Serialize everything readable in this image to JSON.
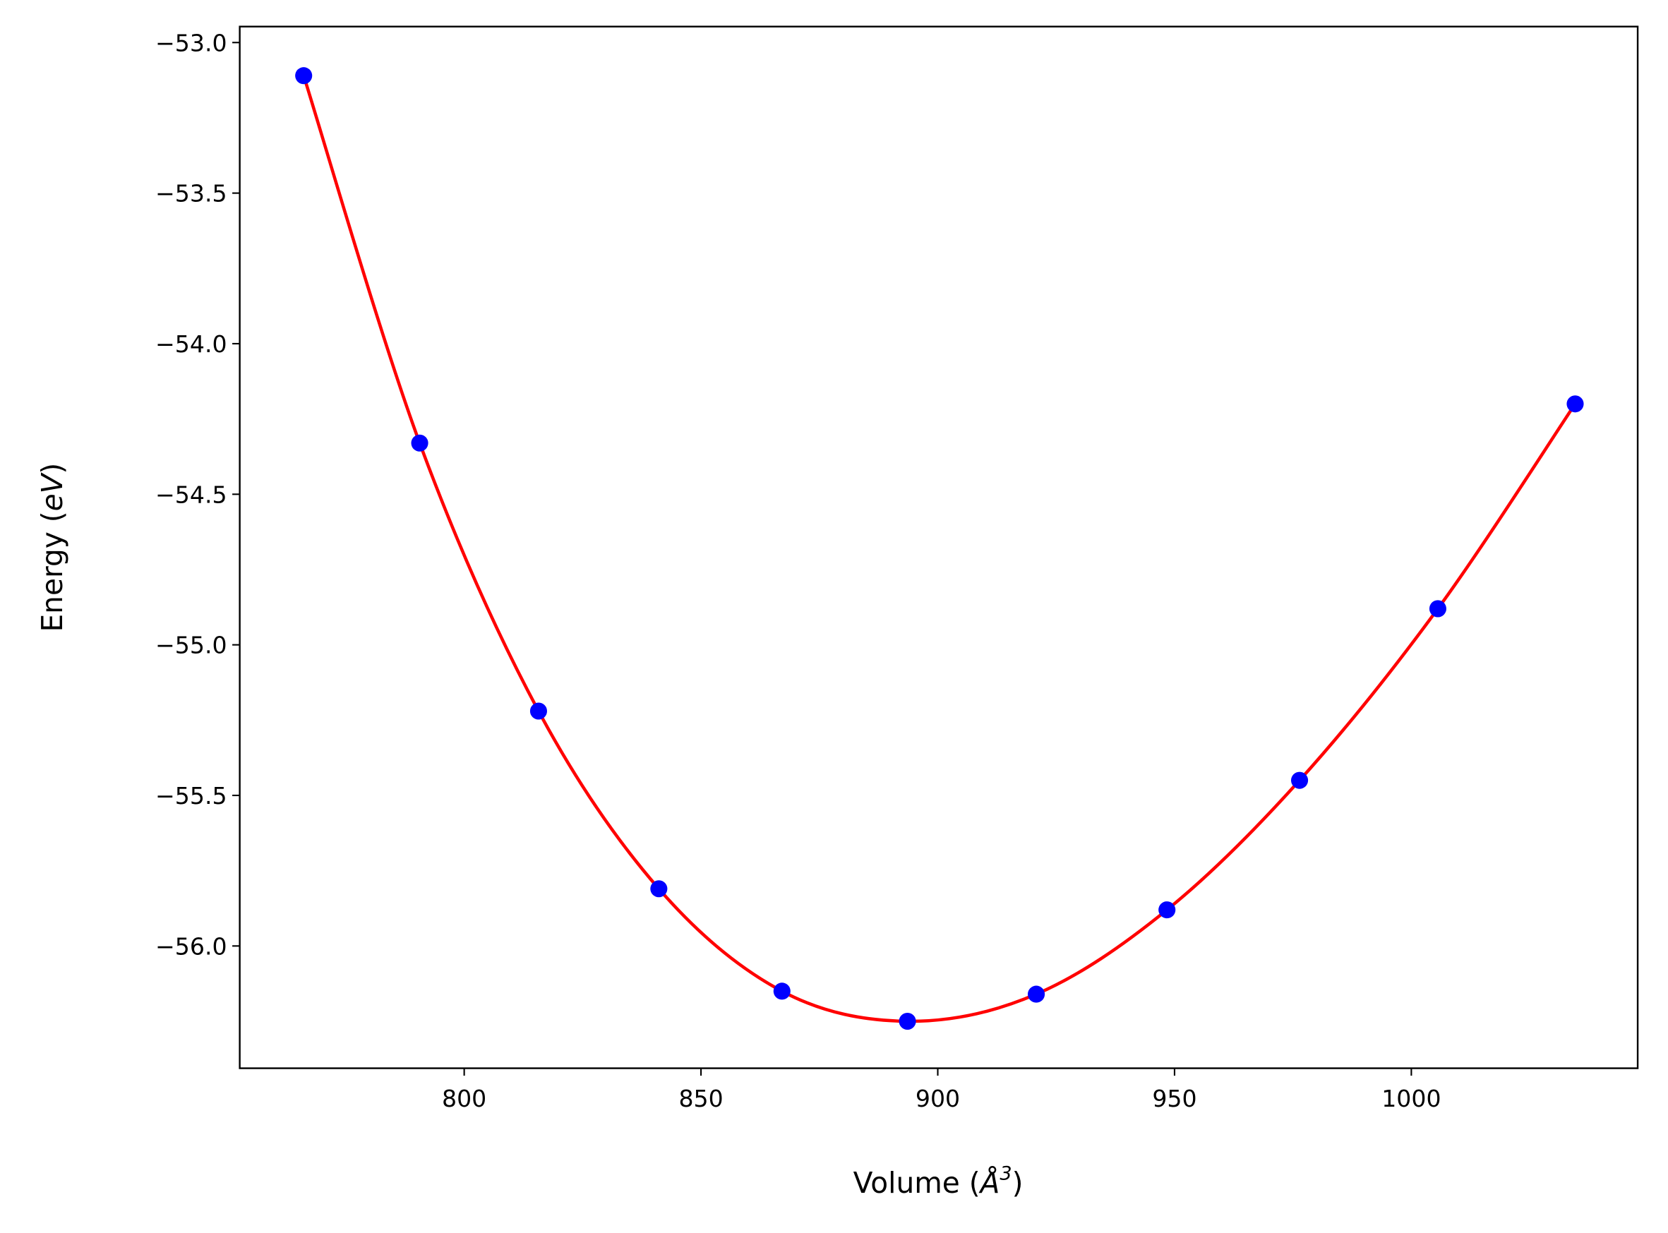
{
  "chart_data": {
    "type": "line",
    "title": "",
    "xlabel": "Volume (Å³)",
    "xlabel_parts": {
      "prefix": "Volume (",
      "unit": "Å",
      "sup": "3",
      "suffix": ")"
    },
    "ylabel": "Energy (eV)",
    "ylabel_parts": {
      "prefix": "Energy (",
      "unit": "eV",
      "suffix": ")"
    },
    "xlim": [
      752.6,
      1047.8
    ],
    "ylim": [
      -56.406,
      -52.947
    ],
    "xticks": [
      800,
      850,
      900,
      950,
      1000
    ],
    "xtick_labels": [
      "800",
      "850",
      "900",
      "950",
      "1000"
    ],
    "yticks": [
      -53.0,
      -53.5,
      -54.0,
      -54.5,
      -55.0,
      -55.5,
      -56.0
    ],
    "ytick_labels": [
      "−53.0",
      "−53.5",
      "−54.0",
      "−54.5",
      "−55.0",
      "−55.5",
      "−56.0"
    ],
    "grid": false,
    "series": [
      {
        "name": "data",
        "style": "markers",
        "color": "#0000ff",
        "x": [
          766.1,
          790.6,
          815.7,
          841.1,
          867.1,
          893.6,
          920.8,
          948.4,
          976.4,
          1005.6,
          1034.6
        ],
        "y": [
          -53.11,
          -54.33,
          -55.22,
          -55.81,
          -56.15,
          -56.25,
          -56.16,
          -55.88,
          -55.45,
          -54.88,
          -54.2
        ]
      },
      {
        "name": "fit",
        "style": "line",
        "color": "#ff0000"
      }
    ]
  }
}
